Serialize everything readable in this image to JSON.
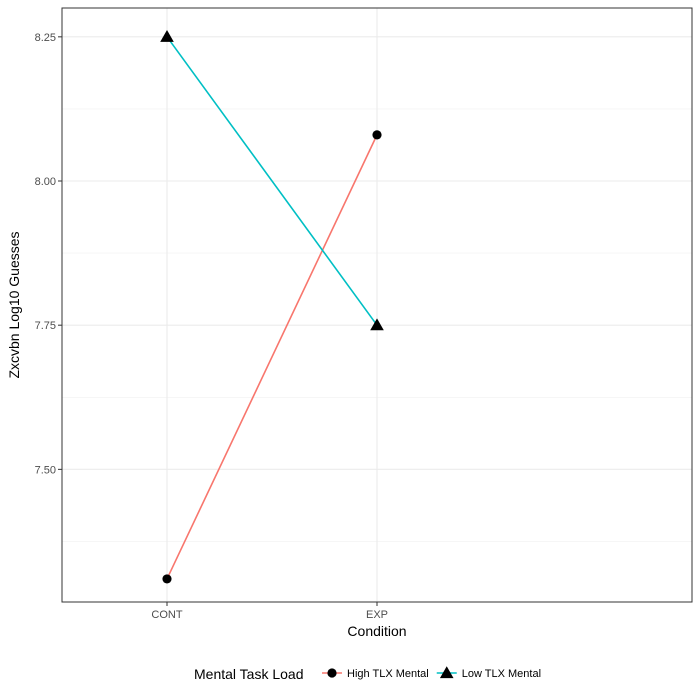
{
  "chart_data": {
    "type": "line",
    "x": [
      "CONT",
      "EXP"
    ],
    "series": [
      {
        "name": "High TLX Mental",
        "values": [
          7.31,
          8.08
        ],
        "color": "#F8766D",
        "marker": "circle"
      },
      {
        "name": "Low TLX Mental",
        "values": [
          8.25,
          7.75
        ],
        "color": "#00BFC4",
        "marker": "triangle"
      }
    ],
    "title": "",
    "xlabel": "Condition",
    "ylabel": "Zxcvbn Log10 Guesses",
    "ylim": [
      7.27,
      8.3
    ],
    "yticks": [
      7.5,
      7.75,
      8.0,
      8.25
    ],
    "ytick_labels": [
      "7.50",
      "7.75",
      "8.00",
      "8.25"
    ],
    "grid": true,
    "legend": {
      "title": "Mental Task Load",
      "position": "bottom"
    }
  }
}
